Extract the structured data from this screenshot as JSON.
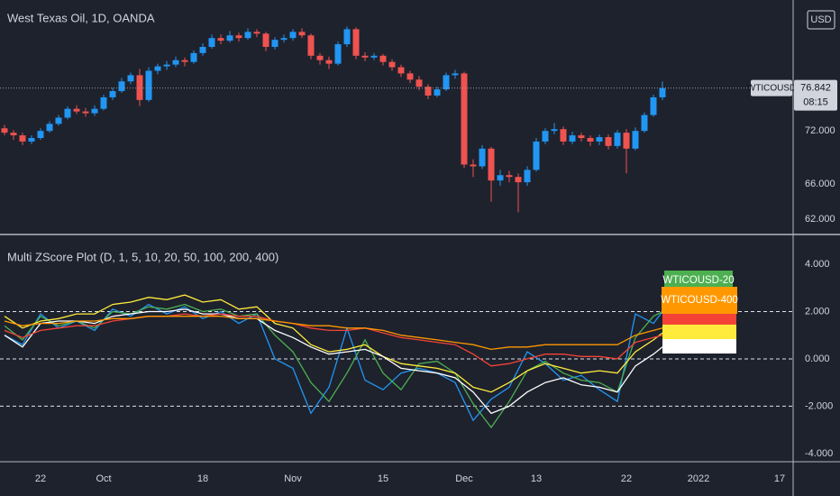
{
  "chart_data": [
    {
      "type": "candlestick",
      "title": "West Texas Oil, 1D, OANDA",
      "currency": "USD",
      "symbol": "WTICOUSD",
      "last_price": 76.842,
      "countdown": "08:15",
      "up_color": "#2196f3",
      "down_color": "#ef5350",
      "categories": [
        null,
        null,
        null,
        null,
        "22",
        null,
        null,
        null,
        null,
        null,
        null,
        "Oct",
        null,
        null,
        null,
        null,
        null,
        null,
        null,
        null,
        null,
        null,
        "18",
        null,
        null,
        null,
        null,
        null,
        null,
        null,
        null,
        null,
        "Nov",
        null,
        null,
        null,
        null,
        null,
        null,
        null,
        null,
        null,
        "15",
        null,
        null,
        null,
        null,
        null,
        null,
        null,
        null,
        "Dec",
        null,
        null,
        null,
        null,
        null,
        null,
        null,
        "13",
        null,
        null,
        null,
        null,
        null,
        null,
        null,
        null,
        null,
        "22",
        null,
        null,
        null,
        null,
        null,
        null,
        null,
        "2022",
        null,
        null,
        null,
        null,
        null,
        null,
        null,
        null,
        "17",
        null
      ],
      "open": [
        72.3,
        71.8,
        71.5,
        70.8,
        71.2,
        72.0,
        72.8,
        73.5,
        74.5,
        74.2,
        74.0,
        74.5,
        75.8,
        76.5,
        77.6,
        78.3,
        75.5,
        78.8,
        79.3,
        79.5,
        80.0,
        79.8,
        80.8,
        81.5,
        82.5,
        82.2,
        82.8,
        82.5,
        83.2,
        83.0,
        81.5,
        82.3,
        82.5,
        83.2,
        82.8,
        80.5,
        80.0,
        79.6,
        81.8,
        83.5,
        80.5,
        80.3,
        80.5,
        79.8,
        79.2,
        78.5,
        77.8,
        77.0,
        76.0,
        76.7,
        78.3,
        78.5,
        68.2,
        68.0,
        70.0,
        66.4,
        67.0,
        66.8,
        66.2,
        67.6,
        70.8,
        72.0,
        72.2,
        70.8,
        71.5,
        71.2,
        70.8,
        71.3,
        70.3,
        71.8,
        70.0,
        72.0,
        73.8,
        75.8,
        null,
        null,
        null,
        null,
        null,
        null,
        null,
        null,
        null,
        null,
        null,
        null,
        null,
        null
      ],
      "high": [
        72.7,
        72.1,
        71.8,
        71.5,
        72.3,
        73.1,
        73.8,
        74.8,
        74.9,
        74.6,
        74.9,
        76.1,
        76.9,
        78.0,
        78.6,
        79.0,
        79.2,
        79.6,
        79.9,
        80.4,
        80.3,
        81.1,
        81.9,
        82.9,
        82.9,
        83.3,
        83.1,
        83.6,
        83.5,
        83.2,
        82.6,
        82.9,
        83.5,
        83.6,
        83.0,
        80.8,
        80.4,
        82.1,
        83.8,
        83.7,
        80.9,
        80.8,
        80.7,
        80.1,
        79.5,
        78.8,
        78.2,
        77.3,
        77.0,
        78.6,
        78.9,
        78.7,
        68.8,
        70.4,
        70.2,
        67.6,
        67.5,
        67.2,
        68.0,
        71.2,
        72.3,
        72.9,
        72.5,
        71.9,
        71.8,
        71.5,
        71.6,
        71.6,
        72.1,
        72.2,
        72.4,
        74.1,
        76.1,
        77.6,
        null,
        null,
        null,
        null,
        null,
        null,
        null,
        null,
        null,
        null,
        null,
        null,
        null,
        null
      ],
      "low": [
        71.5,
        71.0,
        70.4,
        70.5,
        71.0,
        71.8,
        72.6,
        73.3,
        73.9,
        73.6,
        73.7,
        74.3,
        75.5,
        76.3,
        77.3,
        74.8,
        75.3,
        78.4,
        78.9,
        79.2,
        79.3,
        79.6,
        80.5,
        81.3,
        81.8,
        82.0,
        82.1,
        82.3,
        82.6,
        81.0,
        81.2,
        82.0,
        82.2,
        82.5,
        80.1,
        79.5,
        79.0,
        79.4,
        81.5,
        80.1,
        79.9,
        80.0,
        79.4,
        78.8,
        78.1,
        77.4,
        76.6,
        75.6,
        75.8,
        76.5,
        77.9,
        67.8,
        66.8,
        67.7,
        64.0,
        65.8,
        66.2,
        62.8,
        65.8,
        67.4,
        70.5,
        71.6,
        70.4,
        70.5,
        70.8,
        70.3,
        70.4,
        69.9,
        70.0,
        67.2,
        69.8,
        71.8,
        73.6,
        75.5,
        null,
        null,
        null,
        null,
        null,
        null,
        null,
        null,
        null,
        null,
        null,
        null,
        null,
        null
      ],
      "close": [
        71.8,
        71.5,
        70.8,
        71.2,
        72.0,
        72.8,
        73.5,
        74.5,
        74.2,
        74.0,
        74.5,
        75.8,
        76.5,
        77.6,
        78.3,
        75.5,
        78.8,
        79.3,
        79.5,
        80.0,
        79.8,
        80.8,
        81.5,
        82.5,
        82.2,
        82.8,
        82.5,
        83.2,
        83.0,
        81.5,
        82.3,
        82.5,
        83.2,
        82.8,
        80.5,
        80.0,
        79.6,
        81.8,
        83.5,
        80.5,
        80.3,
        80.5,
        79.8,
        79.2,
        78.5,
        77.8,
        77.0,
        76.0,
        76.7,
        78.3,
        78.5,
        68.2,
        68.0,
        70.0,
        66.4,
        67.0,
        66.8,
        66.2,
        67.6,
        70.8,
        72.0,
        72.2,
        70.8,
        71.5,
        71.2,
        70.8,
        71.3,
        70.3,
        71.8,
        70.0,
        72.0,
        73.8,
        75.8,
        76.842,
        null,
        null,
        null,
        null,
        null,
        null,
        null,
        null,
        null,
        null,
        null,
        null,
        null,
        null
      ],
      "ylim": [
        60.5,
        86.8
      ],
      "yticks": [
        {
          "value": 72,
          "label": "72.000"
        },
        {
          "value": 66,
          "label": "66.000"
        },
        {
          "value": 62,
          "label": "62.000"
        }
      ],
      "grid": false
    },
    {
      "type": "line",
      "title": "Multi ZScore Plot (D, 1, 5, 10, 20, 50, 100, 200, 400)",
      "x": [
        0,
        2,
        4,
        6,
        8,
        10,
        12,
        14,
        16,
        18,
        20,
        22,
        24,
        26,
        28,
        30,
        32,
        34,
        36,
        38,
        40,
        42,
        44,
        46,
        48,
        50,
        52,
        54,
        56,
        58,
        60,
        62,
        64,
        66,
        68,
        70,
        72,
        73
      ],
      "xlim": [
        -0.5,
        87.5
      ],
      "series": [
        {
          "color": "#2196f3",
          "values": [
            1.0,
            0.6,
            1.9,
            1.3,
            1.6,
            1.2,
            2.1,
            1.8,
            2.3,
            1.9,
            2.2,
            1.7,
            2.0,
            1.5,
            1.9,
            0.0,
            -0.4,
            -2.3,
            -1.2,
            1.3,
            -0.9,
            -1.3,
            -0.6,
            -0.4,
            -0.6,
            -1.0,
            -2.6,
            -1.7,
            -1.2,
            0.3,
            -0.2,
            -0.9,
            -0.7,
            -1.3,
            -1.8,
            1.9,
            1.5,
            2.0
          ]
        },
        {
          "name": "WTICOUSD-20",
          "color": "#4caf50",
          "values": [
            1.4,
            0.8,
            1.8,
            1.4,
            1.6,
            1.3,
            2.0,
            1.9,
            2.2,
            2.1,
            2.3,
            2.0,
            2.1,
            1.8,
            1.9,
            1.0,
            0.3,
            -1.0,
            -1.8,
            -0.6,
            0.8,
            -0.6,
            -1.3,
            -0.2,
            -0.1,
            -0.6,
            -1.9,
            -2.9,
            -1.8,
            -0.5,
            -0.1,
            -0.6,
            -0.9,
            -1.0,
            -1.4,
            0.9,
            1.8,
            2.0
          ]
        },
        {
          "color": "#ffeb3b",
          "values": [
            1.8,
            1.3,
            1.6,
            1.7,
            1.9,
            1.9,
            2.3,
            2.4,
            2.6,
            2.5,
            2.7,
            2.4,
            2.5,
            2.1,
            2.2,
            1.5,
            1.3,
            0.6,
            0.3,
            0.4,
            0.6,
            0.1,
            -0.2,
            -0.3,
            -0.4,
            -0.6,
            -1.2,
            -1.4,
            -1.0,
            -0.5,
            -0.2,
            -0.4,
            -0.6,
            -0.5,
            -0.6,
            0.3,
            0.8,
            1.1
          ]
        },
        {
          "color": "#ffffff",
          "values": [
            1.0,
            0.5,
            1.5,
            1.6,
            1.6,
            1.5,
            1.8,
            1.9,
            2.0,
            2.0,
            2.1,
            1.9,
            1.9,
            1.7,
            1.7,
            1.2,
            0.9,
            0.5,
            0.2,
            0.3,
            0.4,
            0.1,
            -0.4,
            -0.5,
            -0.6,
            -0.8,
            -1.4,
            -2.3,
            -2.0,
            -1.4,
            -1.0,
            -0.8,
            -1.1,
            -1.2,
            -1.4,
            -0.3,
            0.2,
            0.5
          ]
        },
        {
          "color": "#f44336",
          "values": [
            1.2,
            0.9,
            1.2,
            1.3,
            1.4,
            1.4,
            1.6,
            1.7,
            1.8,
            1.8,
            1.9,
            1.8,
            1.9,
            1.8,
            1.8,
            1.6,
            1.5,
            1.3,
            1.2,
            1.2,
            1.3,
            1.1,
            0.9,
            0.8,
            0.7,
            0.6,
            0.2,
            -0.3,
            -0.2,
            0.0,
            0.2,
            0.2,
            0.1,
            0.1,
            0.0,
            0.7,
            0.9,
            1.0
          ]
        },
        {
          "name": "WTICOUSD-400",
          "color": "#ff9800",
          "values": [
            1.6,
            1.4,
            1.5,
            1.5,
            1.6,
            1.6,
            1.7,
            1.7,
            1.8,
            1.8,
            1.8,
            1.8,
            1.8,
            1.7,
            1.7,
            1.6,
            1.5,
            1.4,
            1.4,
            1.3,
            1.3,
            1.2,
            1.0,
            0.9,
            0.8,
            0.7,
            0.6,
            0.4,
            0.5,
            0.5,
            0.6,
            0.6,
            0.6,
            0.6,
            0.6,
            1.0,
            1.2,
            1.3
          ]
        }
      ],
      "ylim": [
        -4.27,
        5.18
      ],
      "yticks": [
        {
          "value": 4,
          "label": "4.000"
        },
        {
          "value": 2,
          "label": "2.000"
        },
        {
          "value": 0,
          "label": "0.000"
        },
        {
          "value": -2,
          "label": "-2.000"
        },
        {
          "value": -4,
          "label": "-4.000"
        }
      ],
      "hlines": [
        2,
        0,
        -2
      ],
      "grid": false
    }
  ]
}
